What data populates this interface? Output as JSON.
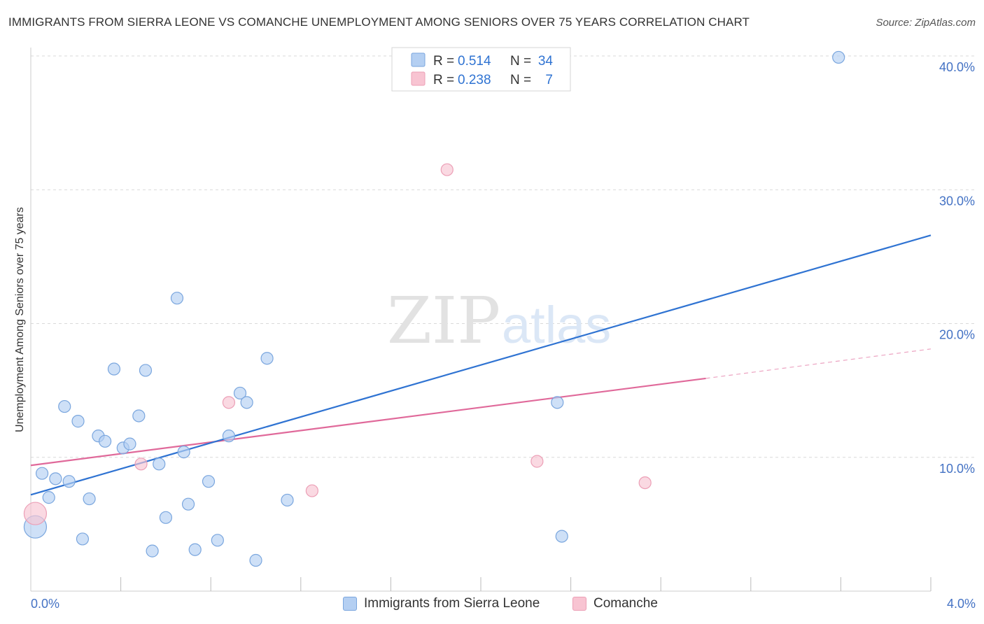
{
  "title": "IMMIGRANTS FROM SIERRA LEONE VS COMANCHE UNEMPLOYMENT AMONG SENIORS OVER 75 YEARS CORRELATION CHART",
  "source": "Source: ZipAtlas.com",
  "watermark": {
    "zip": "ZIP",
    "atlas": "atlas"
  },
  "legend": {
    "r_label": "R =",
    "n_label": "N =",
    "series": [
      {
        "r": "0.514",
        "n": "34"
      },
      {
        "r": "0.238",
        "n": "7"
      }
    ]
  },
  "colors": {
    "blue_fill": "#b4cff2",
    "blue_stroke": "#7aa6de",
    "blue_line": "#2f73d2",
    "pink_fill": "#f8c4d2",
    "pink_stroke": "#ec9fb6",
    "pink_line": "#e0699a",
    "grid": "#d9d9d9",
    "axis_text": "#4472c4"
  },
  "chart_data": {
    "type": "scatter",
    "title": "IMMIGRANTS FROM SIERRA LEONE VS COMANCHE UNEMPLOYMENT AMONG SENIORS OVER 75 YEARS CORRELATION CHART",
    "xlabel": "",
    "ylabel": "Unemployment Among Seniors over 75 years",
    "xlim": [
      0,
      4
    ],
    "ylim": [
      0,
      40
    ],
    "x_tick_labels": [
      "0.0%",
      "4.0%"
    ],
    "y_ticks": [
      10,
      20,
      30,
      40
    ],
    "y_tick_labels": [
      "10.0%",
      "20.0%",
      "30.0%",
      "40.0%"
    ],
    "grid": true,
    "legend_position": "bottom-center",
    "series": [
      {
        "name": "Immigrants from Sierra Leone",
        "r": 0.514,
        "n": 34,
        "points": [
          {
            "x": 0.02,
            "y": 4.8,
            "big": true
          },
          {
            "x": 0.05,
            "y": 8.8
          },
          {
            "x": 0.08,
            "y": 7.0
          },
          {
            "x": 0.11,
            "y": 8.4
          },
          {
            "x": 0.15,
            "y": 13.8
          },
          {
            "x": 0.17,
            "y": 8.2
          },
          {
            "x": 0.21,
            "y": 12.7
          },
          {
            "x": 0.23,
            "y": 3.9
          },
          {
            "x": 0.26,
            "y": 6.9
          },
          {
            "x": 0.3,
            "y": 11.6
          },
          {
            "x": 0.33,
            "y": 11.2
          },
          {
            "x": 0.37,
            "y": 16.6
          },
          {
            "x": 0.41,
            "y": 10.7
          },
          {
            "x": 0.44,
            "y": 11.0
          },
          {
            "x": 0.48,
            "y": 13.1
          },
          {
            "x": 0.51,
            "y": 16.5
          },
          {
            "x": 0.54,
            "y": 3.0
          },
          {
            "x": 0.57,
            "y": 9.5
          },
          {
            "x": 0.6,
            "y": 5.5
          },
          {
            "x": 0.65,
            "y": 21.9
          },
          {
            "x": 0.68,
            "y": 10.4
          },
          {
            "x": 0.7,
            "y": 6.5
          },
          {
            "x": 0.73,
            "y": 3.1
          },
          {
            "x": 0.79,
            "y": 8.2
          },
          {
            "x": 0.83,
            "y": 3.8
          },
          {
            "x": 0.88,
            "y": 11.6
          },
          {
            "x": 0.93,
            "y": 14.8
          },
          {
            "x": 0.96,
            "y": 14.1
          },
          {
            "x": 1.0,
            "y": 2.3
          },
          {
            "x": 1.05,
            "y": 17.4
          },
          {
            "x": 1.14,
            "y": 6.8
          },
          {
            "x": 2.34,
            "y": 14.1
          },
          {
            "x": 2.36,
            "y": 4.1
          },
          {
            "x": 3.59,
            "y": 39.9
          }
        ],
        "trend": {
          "x": [
            0.0,
            4.0
          ],
          "y": [
            7.2,
            26.6
          ]
        }
      },
      {
        "name": "Comanche",
        "r": 0.238,
        "n": 7,
        "points": [
          {
            "x": 0.02,
            "y": 5.8,
            "big": true
          },
          {
            "x": 0.49,
            "y": 9.5
          },
          {
            "x": 0.88,
            "y": 14.1
          },
          {
            "x": 1.25,
            "y": 7.5
          },
          {
            "x": 1.85,
            "y": 31.5
          },
          {
            "x": 2.25,
            "y": 9.7
          },
          {
            "x": 2.73,
            "y": 8.1
          }
        ],
        "trend": {
          "x": [
            0.0,
            3.0
          ],
          "y": [
            9.4,
            15.9
          ]
        },
        "trend_dashed": {
          "x": [
            3.0,
            4.0
          ],
          "y": [
            15.9,
            18.1
          ]
        }
      }
    ]
  }
}
